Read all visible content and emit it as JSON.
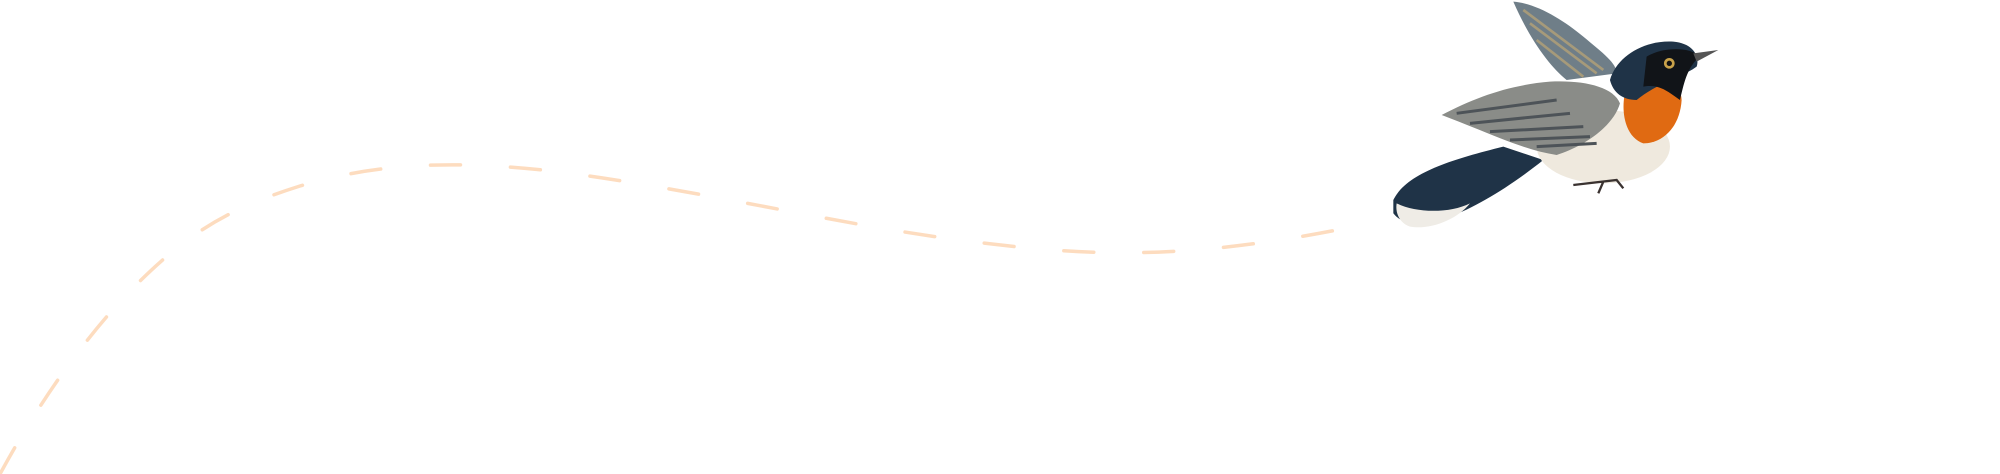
{
  "scene": {
    "background": "#ffffff",
    "flight_path_color": "#fddcbf",
    "bird": {
      "icon": "flying-bird-illustration",
      "colors": {
        "back": "#1f3347",
        "throat": "#e06a12",
        "belly": "#efe9de",
        "wing": "#7d848a",
        "mask": "#111418"
      }
    }
  }
}
